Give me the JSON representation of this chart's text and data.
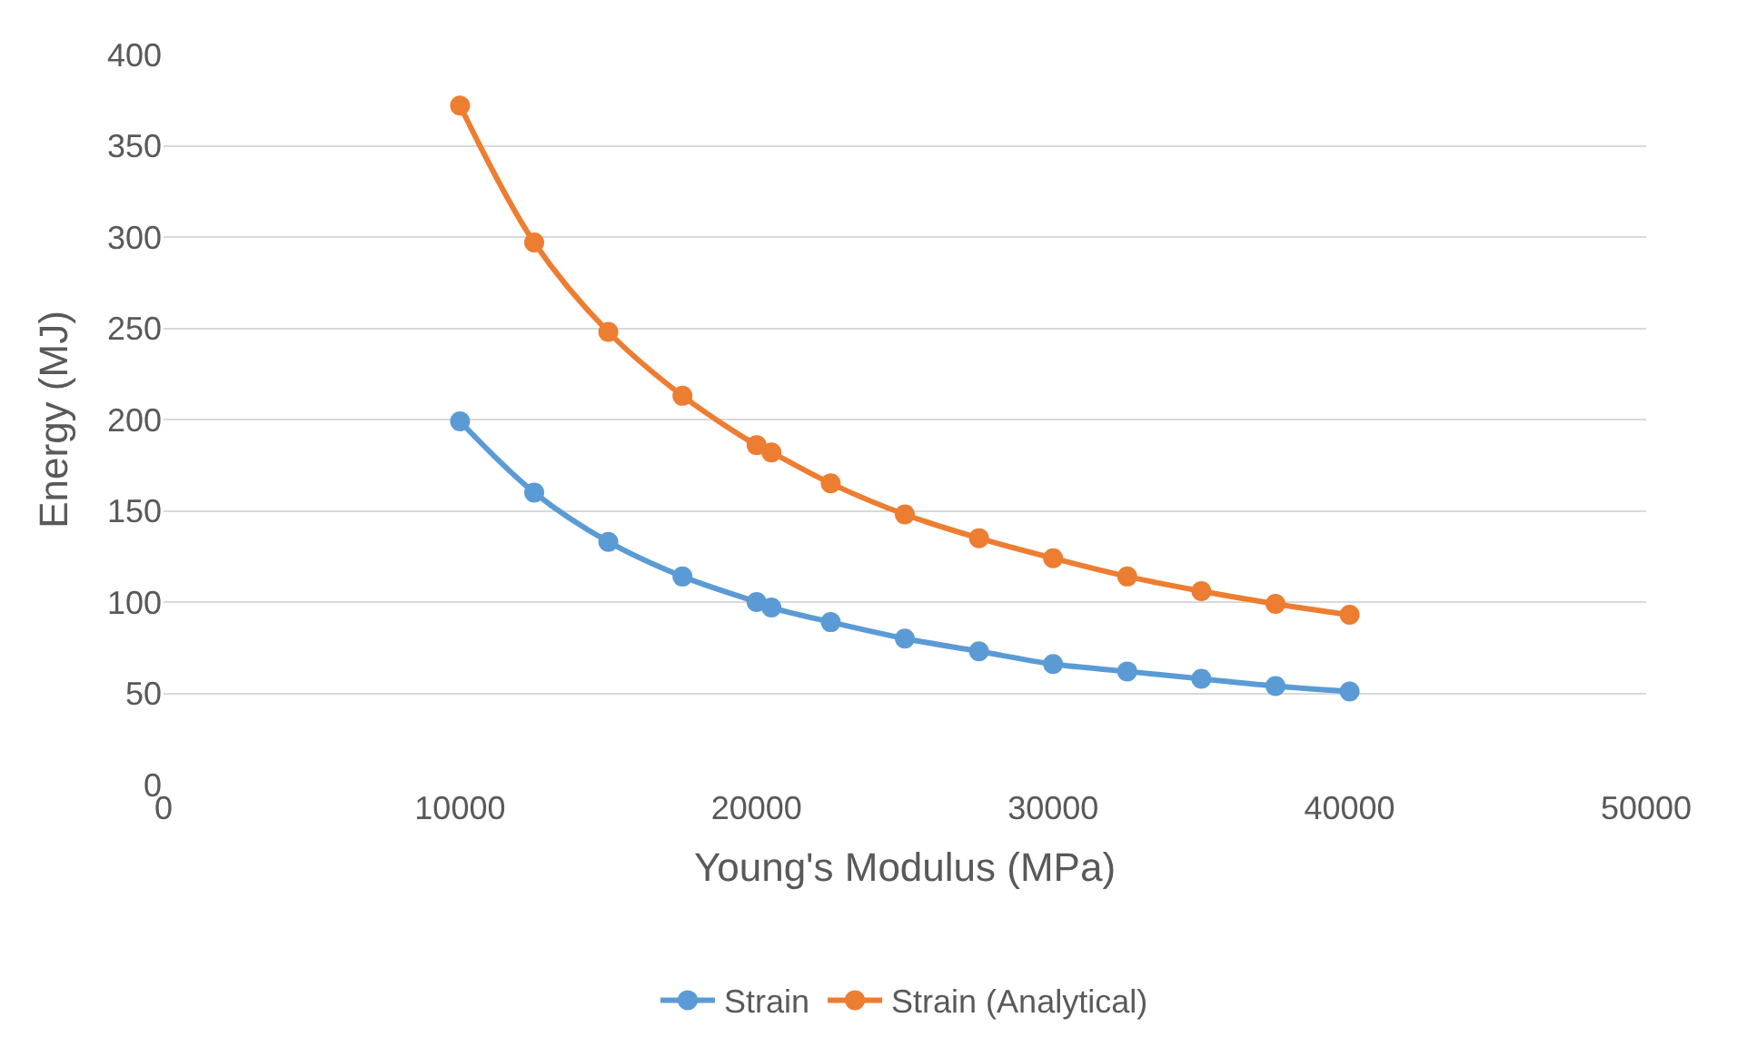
{
  "chart_data": {
    "type": "line",
    "xlabel": "Young's Modulus (MPa)",
    "ylabel": "Energy (MJ)",
    "x": [
      10000,
      12500,
      15000,
      17500,
      20000,
      20500,
      22500,
      25000,
      27500,
      30000,
      32500,
      35000,
      37500,
      40000
    ],
    "series": [
      {
        "name": "Strain",
        "color": "#5b9bd5",
        "values": [
          199,
          160,
          133,
          114,
          100,
          97,
          89,
          80,
          73,
          66,
          62,
          58,
          54,
          51
        ]
      },
      {
        "name": "Strain (Analytical)",
        "color": "#ed7d31",
        "values": [
          372,
          297,
          248,
          213,
          186,
          182,
          165,
          148,
          135,
          124,
          114,
          106,
          99,
          93
        ]
      }
    ],
    "xlim": [
      0,
      50000
    ],
    "xticks": [
      0,
      10000,
      20000,
      30000,
      40000,
      50000
    ],
    "ylim": [
      0,
      400
    ],
    "yticks": [
      0,
      50,
      100,
      150,
      200,
      250,
      300,
      350,
      400
    ],
    "grid": "y",
    "legend": "bottom",
    "marker": "circle",
    "line_style": "solid"
  }
}
